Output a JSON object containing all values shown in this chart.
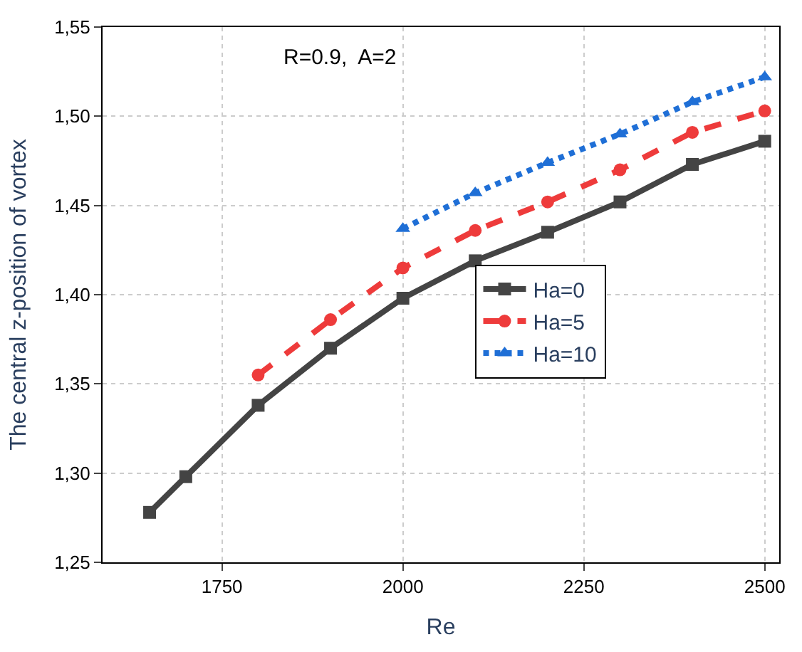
{
  "chart_data": {
    "type": "line",
    "xlabel": "Re",
    "ylabel": "The central z-position of vortex",
    "annotations": [
      "R=0.9,  A=2"
    ],
    "xlim": [
      1585,
      2520
    ],
    "xticks": [
      1750,
      2000,
      2250,
      2500
    ],
    "ylim": [
      1.25,
      1.55
    ],
    "yticks": [
      {
        "value": 1.25,
        "label": "1,25"
      },
      {
        "value": 1.3,
        "label": "1,30"
      },
      {
        "value": 1.35,
        "label": "1,35"
      },
      {
        "value": 1.4,
        "label": "1,40"
      },
      {
        "value": 1.45,
        "label": "1,45"
      },
      {
        "value": 1.5,
        "label": "1,50"
      },
      {
        "value": 1.55,
        "label": "1,55"
      }
    ],
    "grid": true,
    "legend": "right",
    "series": [
      {
        "name": "Ha=0",
        "color": "#444444",
        "marker": "square",
        "line_style": "solid",
        "x": [
          1650,
          1700,
          1800,
          1900,
          2000,
          2100,
          2200,
          2300,
          2400,
          2500
        ],
        "values": [
          1.278,
          1.298,
          1.338,
          1.37,
          1.398,
          1.419,
          1.435,
          1.452,
          1.473,
          1.486
        ]
      },
      {
        "name": "Ha=5",
        "color": "#ee3b3b",
        "marker": "circle",
        "line_style": "dashed",
        "x": [
          1800,
          1900,
          2000,
          2100,
          2200,
          2300,
          2400,
          2500
        ],
        "values": [
          1.355,
          1.386,
          1.415,
          1.436,
          1.452,
          1.47,
          1.491,
          1.503
        ]
      },
      {
        "name": "Ha=10",
        "color": "#1f6fd6",
        "marker": "triangle",
        "line_style": "dotted",
        "x": [
          2000,
          2100,
          2200,
          2300,
          2400,
          2500
        ],
        "values": [
          1.437,
          1.457,
          1.474,
          1.49,
          1.508,
          1.522
        ]
      }
    ]
  }
}
